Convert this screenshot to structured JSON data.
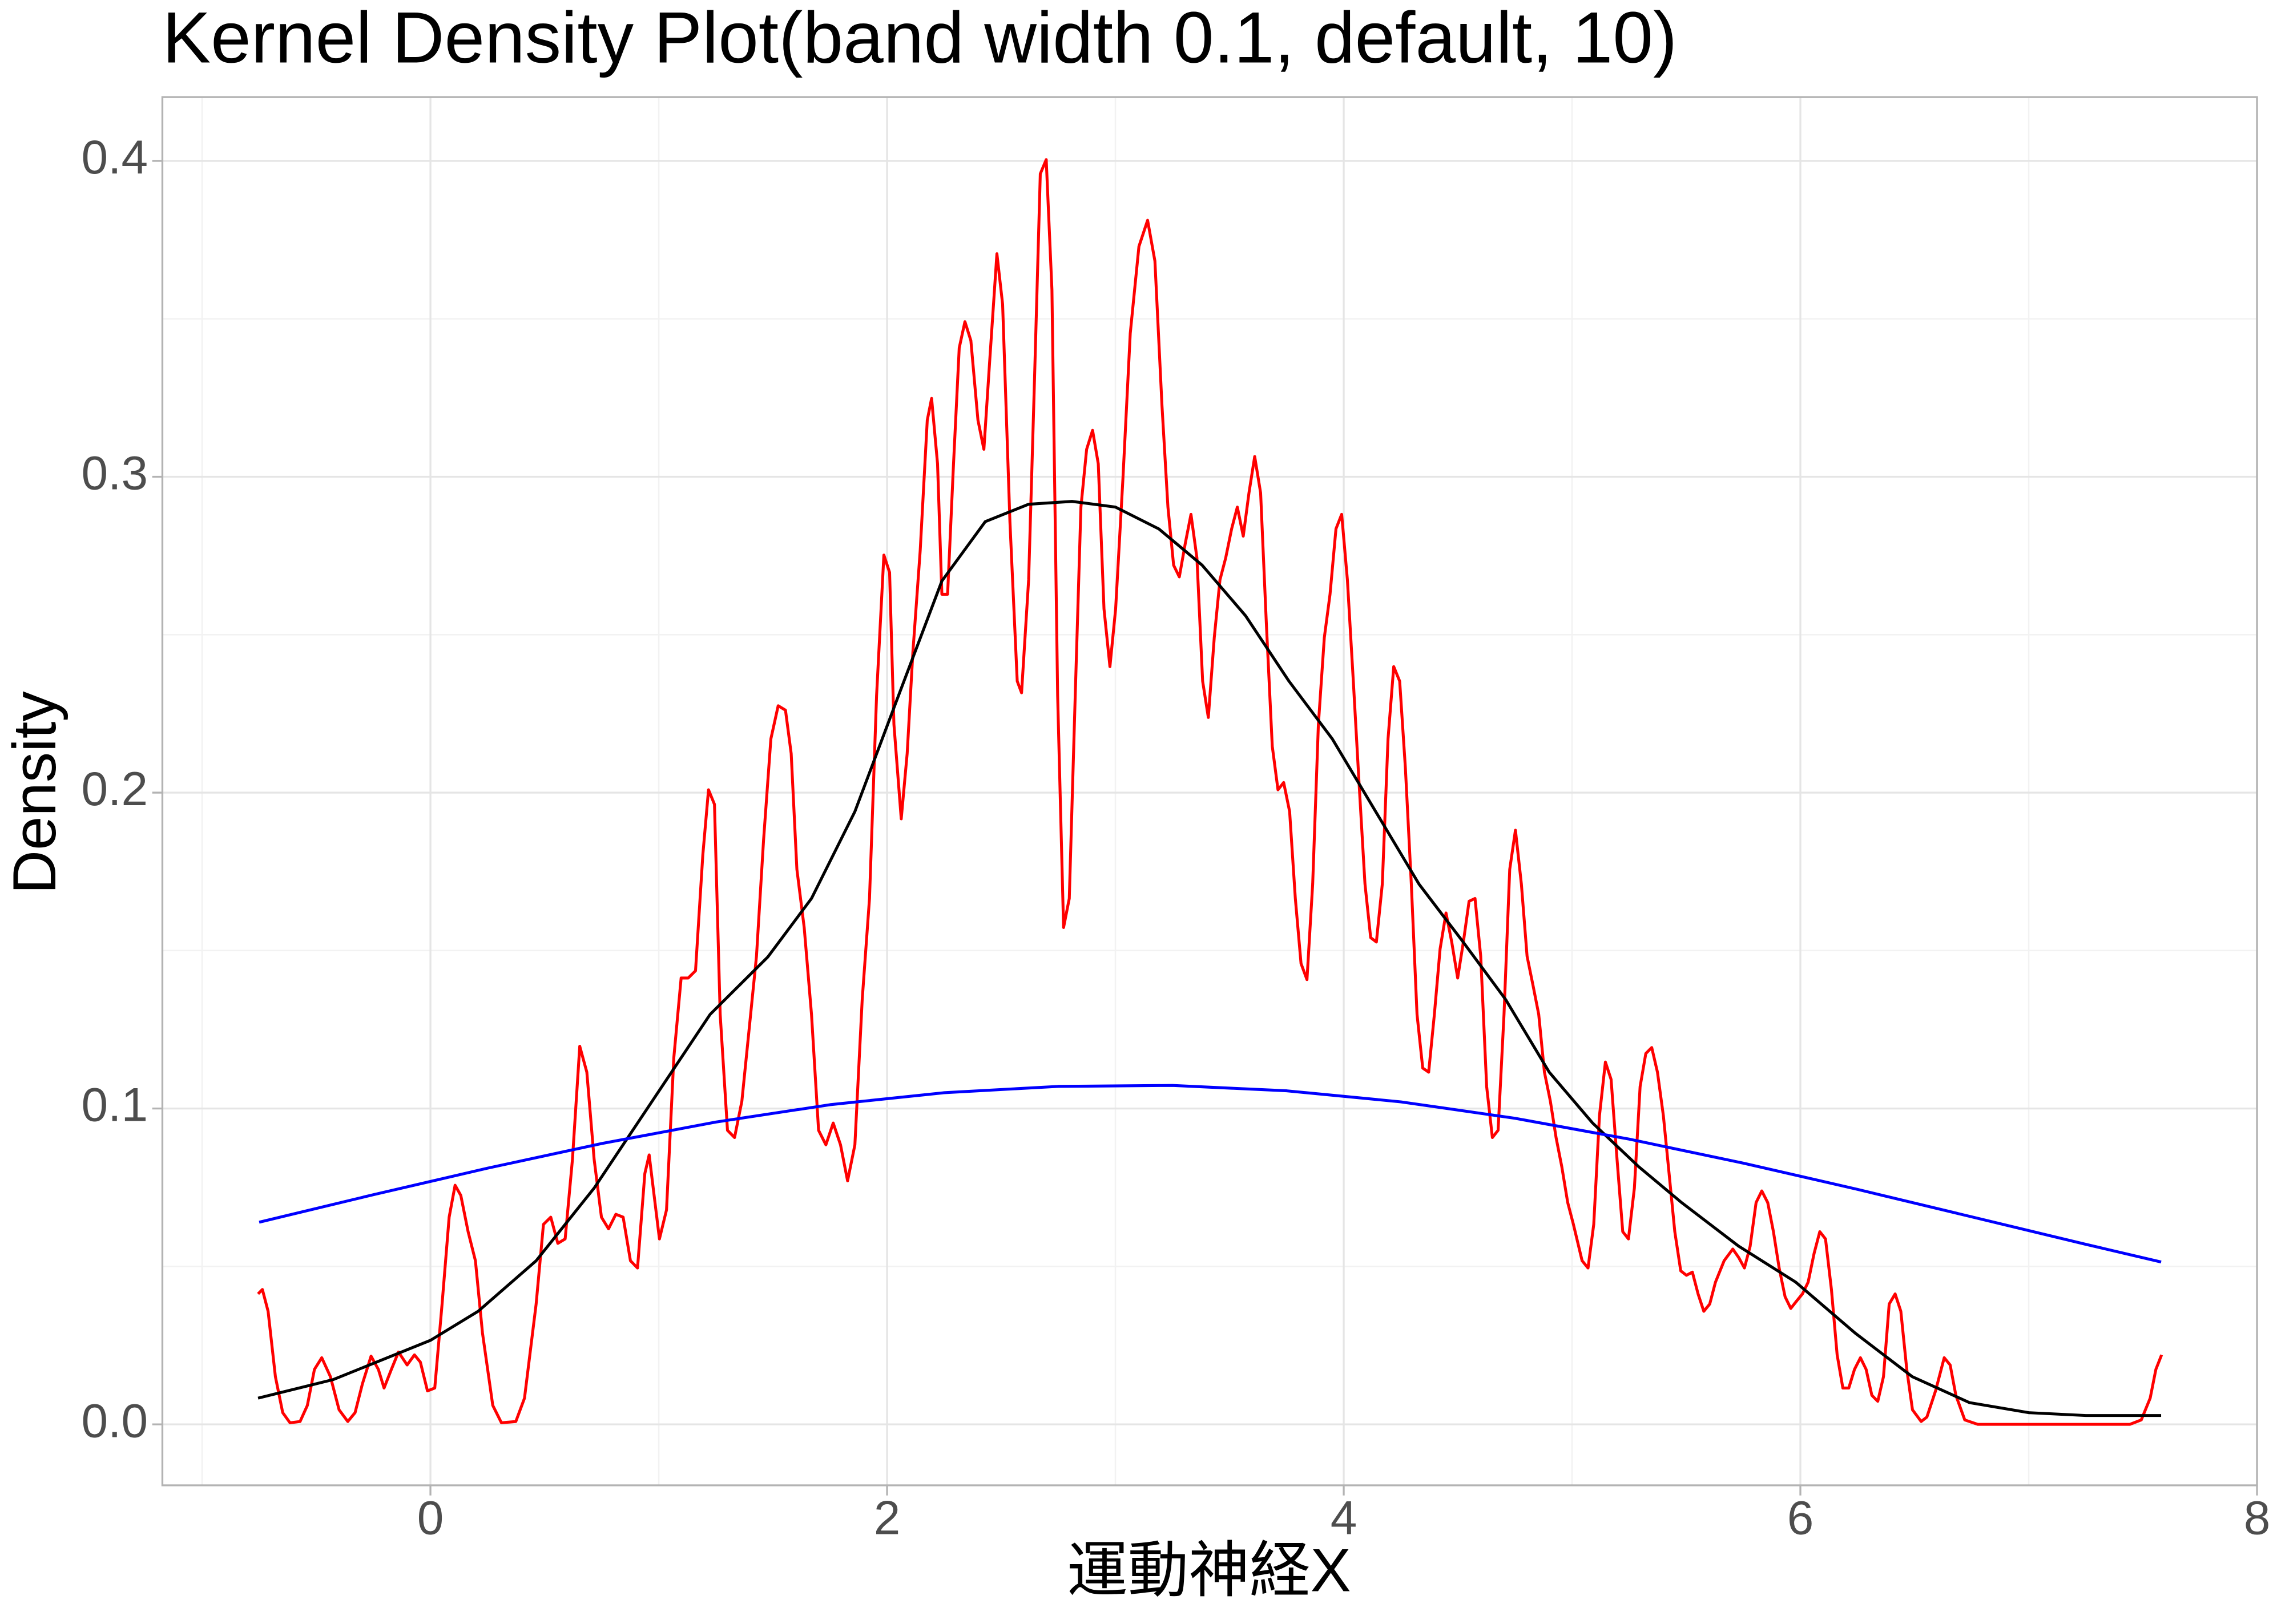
{
  "chart_data": {
    "type": "line",
    "title": "Kernel Density Plot(band width 0.1, default, 10)",
    "x_label": "運動神経X",
    "y_label": "Density",
    "xlim": [
      -1.174,
      8.0
    ],
    "ylim": [
      -0.0193,
      0.4202
    ],
    "xticks": [
      0,
      2,
      4,
      6,
      8
    ],
    "yticks": [
      0.0,
      0.1,
      0.2,
      0.3,
      0.4
    ],
    "grid": true,
    "series": [
      {
        "color": "#ff0000",
        "x": [
          -0.755,
          -0.736,
          -0.711,
          -0.679,
          -0.647,
          -0.615,
          -0.571,
          -0.539,
          -0.508,
          -0.476,
          -0.438,
          -0.4,
          -0.362,
          -0.33,
          -0.298,
          -0.26,
          -0.228,
          -0.203,
          -0.171,
          -0.14,
          -0.102,
          -0.07,
          -0.044,
          -0.013,
          0.019,
          0.051,
          0.082,
          0.108,
          0.133,
          0.165,
          0.197,
          0.228,
          0.273,
          0.311,
          0.374,
          0.412,
          0.463,
          0.495,
          0.527,
          0.558,
          0.59,
          0.622,
          0.654,
          0.685,
          0.717,
          0.749,
          0.78,
          0.812,
          0.844,
          0.876,
          0.907,
          0.939,
          0.958,
          1.003,
          1.034,
          1.066,
          1.098,
          1.129,
          1.161,
          1.193,
          1.218,
          1.244,
          1.269,
          1.301,
          1.332,
          1.364,
          1.396,
          1.428,
          1.459,
          1.491,
          1.523,
          1.555,
          1.58,
          1.605,
          1.637,
          1.669,
          1.7,
          1.732,
          1.764,
          1.796,
          1.827,
          1.859,
          1.891,
          1.923,
          1.954,
          1.986,
          2.011,
          2.03,
          2.062,
          2.088,
          2.113,
          2.145,
          2.176,
          2.195,
          2.221,
          2.24,
          2.265,
          2.291,
          2.316,
          2.341,
          2.367,
          2.398,
          2.424,
          2.449,
          2.481,
          2.506,
          2.538,
          2.57,
          2.589,
          2.62,
          2.646,
          2.671,
          2.697,
          2.722,
          2.747,
          2.773,
          2.798,
          2.824,
          2.849,
          2.874,
          2.9,
          2.925,
          2.95,
          2.976,
          3.001,
          3.033,
          3.065,
          3.103,
          3.141,
          3.173,
          3.204,
          3.23,
          3.255,
          3.28,
          3.306,
          3.331,
          3.357,
          3.382,
          3.407,
          3.433,
          3.458,
          3.483,
          3.509,
          3.534,
          3.56,
          3.585,
          3.61,
          3.636,
          3.661,
          3.687,
          3.712,
          3.737,
          3.763,
          3.788,
          3.813,
          3.839,
          3.864,
          3.889,
          3.915,
          3.94,
          3.966,
          3.991,
          4.016,
          4.042,
          4.067,
          4.093,
          4.118,
          4.143,
          4.169,
          4.194,
          4.219,
          4.245,
          4.27,
          4.296,
          4.321,
          4.346,
          4.372,
          4.397,
          4.422,
          4.448,
          4.473,
          4.499,
          4.524,
          4.549,
          4.575,
          4.6,
          4.626,
          4.651,
          4.676,
          4.702,
          4.727,
          4.752,
          4.778,
          4.803,
          4.829,
          4.854,
          4.879,
          4.905,
          4.93,
          4.955,
          4.981,
          5.006,
          5.044,
          5.07,
          5.095,
          5.12,
          5.146,
          5.171,
          5.197,
          5.222,
          5.247,
          5.273,
          5.298,
          5.323,
          5.349,
          5.374,
          5.4,
          5.425,
          5.45,
          5.476,
          5.501,
          5.527,
          5.552,
          5.577,
          5.603,
          5.628,
          5.666,
          5.704,
          5.73,
          5.755,
          5.78,
          5.806,
          5.831,
          5.857,
          5.882,
          5.907,
          5.933,
          5.958,
          5.983,
          6.009,
          6.034,
          6.06,
          6.085,
          6.11,
          6.136,
          6.161,
          6.186,
          6.212,
          6.237,
          6.263,
          6.288,
          6.313,
          6.339,
          6.364,
          6.389,
          6.415,
          6.44,
          6.466,
          6.491,
          6.529,
          6.554,
          6.592,
          6.63,
          6.656,
          6.681,
          6.72,
          6.777,
          7.443,
          7.493,
          7.532,
          7.557,
          7.582
        ],
        "values": [
          0.0413,
          0.0427,
          0.0358,
          0.0151,
          0.0037,
          0.0005,
          0.0009,
          0.006,
          0.0174,
          0.0211,
          0.0151,
          0.0046,
          0.0009,
          0.0037,
          0.0128,
          0.0216,
          0.0174,
          0.0115,
          0.0174,
          0.0229,
          0.0188,
          0.022,
          0.0197,
          0.0106,
          0.0115,
          0.0381,
          0.0656,
          0.0757,
          0.0725,
          0.061,
          0.0518,
          0.0289,
          0.006,
          0.0005,
          0.0009,
          0.0083,
          0.0381,
          0.0633,
          0.0656,
          0.0573,
          0.0587,
          0.0839,
          0.1197,
          0.1115,
          0.0839,
          0.0656,
          0.0619,
          0.0665,
          0.0656,
          0.0518,
          0.0495,
          0.0794,
          0.0853,
          0.0587,
          0.0679,
          0.1161,
          0.1413,
          0.1413,
          0.1436,
          0.1803,
          0.2009,
          0.1963,
          0.1298,
          0.0931,
          0.0908,
          0.1023,
          0.1252,
          0.1482,
          0.1849,
          0.217,
          0.2275,
          0.2261,
          0.2124,
          0.1757,
          0.1573,
          0.1298,
          0.0931,
          0.0885,
          0.0954,
          0.0885,
          0.0771,
          0.0885,
          0.1344,
          0.1665,
          0.2307,
          0.2752,
          0.2697,
          0.2216,
          0.1917,
          0.2124,
          0.2445,
          0.2766,
          0.3179,
          0.3248,
          0.3041,
          0.2628,
          0.2628,
          0.3041,
          0.3408,
          0.3491,
          0.3431,
          0.3179,
          0.3087,
          0.3362,
          0.3706,
          0.3546,
          0.2858,
          0.2353,
          0.2316,
          0.2674,
          0.3316,
          0.3959,
          0.4004,
          0.3592,
          0.2307,
          0.1573,
          0.1665,
          0.2307,
          0.2904,
          0.3087,
          0.3147,
          0.3041,
          0.2582,
          0.2399,
          0.2582,
          0.2995,
          0.3454,
          0.3729,
          0.3812,
          0.3683,
          0.3225,
          0.2904,
          0.272,
          0.2683,
          0.2789,
          0.2881,
          0.2743,
          0.2353,
          0.2238,
          0.2491,
          0.2674,
          0.2743,
          0.2835,
          0.2904,
          0.2812,
          0.2949,
          0.3064,
          0.2949,
          0.2537,
          0.2147,
          0.2009,
          0.2032,
          0.194,
          0.1665,
          0.1459,
          0.1408,
          0.1711,
          0.2216,
          0.2491,
          0.2628,
          0.2835,
          0.2881,
          0.2674,
          0.2353,
          0.2032,
          0.1711,
          0.1541,
          0.1527,
          0.1711,
          0.217,
          0.2399,
          0.2353,
          0.2078,
          0.1711,
          0.1298,
          0.1128,
          0.1115,
          0.1298,
          0.1505,
          0.1619,
          0.1527,
          0.1413,
          0.1527,
          0.1656,
          0.1665,
          0.1482,
          0.1069,
          0.0908,
          0.0931,
          0.1298,
          0.1757,
          0.1881,
          0.1711,
          0.1482,
          0.139,
          0.1298,
          0.1115,
          0.1023,
          0.0908,
          0.0816,
          0.0702,
          0.0633,
          0.0518,
          0.0495,
          0.0633,
          0.0977,
          0.1147,
          0.1092,
          0.0839,
          0.061,
          0.0587,
          0.0748,
          0.1069,
          0.1174,
          0.1193,
          0.1115,
          0.0977,
          0.0794,
          0.061,
          0.0486,
          0.0472,
          0.0482,
          0.0413,
          0.0358,
          0.0381,
          0.045,
          0.0518,
          0.0555,
          0.0528,
          0.0495,
          0.0564,
          0.0702,
          0.0739,
          0.0702,
          0.061,
          0.0495,
          0.0404,
          0.0367,
          0.039,
          0.0413,
          0.045,
          0.0541,
          0.061,
          0.0587,
          0.0427,
          0.022,
          0.0115,
          0.0115,
          0.0174,
          0.0211,
          0.0174,
          0.0092,
          0.0073,
          0.0151,
          0.0381,
          0.0413,
          0.0358,
          0.0174,
          0.0046,
          0.0009,
          0.0023,
          0.0106,
          0.0211,
          0.0188,
          0.0092,
          0.0014,
          0,
          0,
          0.0014,
          0.0083,
          0.0174,
          0.022
        ]
      },
      {
        "color": "#000000",
        "x": [
          -0.755,
          -0.425,
          0,
          0.209,
          0.463,
          0.717,
          0.971,
          1.225,
          1.478,
          1.669,
          1.859,
          2.05,
          2.24,
          2.43,
          2.62,
          2.81,
          3.0,
          3.19,
          3.38,
          3.57,
          3.76,
          3.95,
          4.14,
          4.33,
          4.52,
          4.71,
          4.9,
          5.09,
          5.29,
          5.48,
          5.73,
          5.98,
          6.24,
          6.49,
          6.74,
          7.0,
          7.25,
          7.58
        ],
        "values": [
          0.0083,
          0.0142,
          0.0266,
          0.0358,
          0.0518,
          0.0748,
          0.1023,
          0.1298,
          0.148,
          0.1665,
          0.194,
          0.2307,
          0.267,
          0.2858,
          0.2913,
          0.2922,
          0.2904,
          0.2835,
          0.272,
          0.256,
          0.2353,
          0.217,
          0.194,
          0.171,
          0.153,
          0.1344,
          0.1115,
          0.0954,
          0.0817,
          0.0702,
          0.0564,
          0.045,
          0.0289,
          0.0151,
          0.0069,
          0.0037,
          0.0028,
          0.0028
        ]
      },
      {
        "color": "#0000ff",
        "x": [
          -0.75,
          -0.25,
          0.25,
          0.75,
          1.25,
          1.75,
          2.25,
          2.75,
          3.25,
          3.75,
          4.25,
          4.75,
          5.25,
          5.75,
          6.25,
          6.75,
          7.25,
          7.58
        ],
        "values": [
          0.064,
          0.0727,
          0.0811,
          0.0889,
          0.0957,
          0.1012,
          0.105,
          0.107,
          0.1073,
          0.1056,
          0.1021,
          0.0969,
          0.0903,
          0.0827,
          0.0744,
          0.0657,
          0.057,
          0.0514
        ]
      }
    ]
  }
}
